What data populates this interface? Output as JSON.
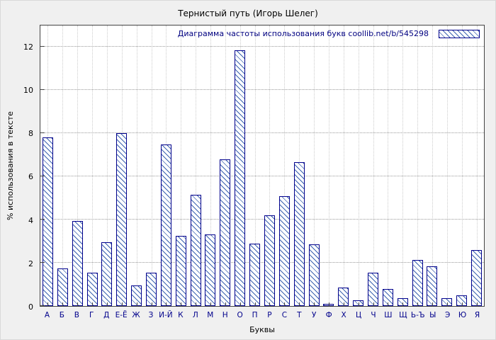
{
  "window": {
    "title": "Тернистый путь (Игорь Шелег)"
  },
  "chart_data": {
    "type": "bar",
    "title": "Тернистый путь (Игорь Шелег)",
    "legend_label": "Диаграмма частоты использования букв  coollib.net/b/545298",
    "legend_position": "top-right-inside",
    "xlabel": "Буквы",
    "ylabel": "% использования в тексте",
    "ylim": [
      0,
      13
    ],
    "yticks": [
      0,
      2,
      4,
      6,
      8,
      10,
      12
    ],
    "grid": true,
    "categories": [
      "А",
      "Б",
      "В",
      "Г",
      "Д",
      "Е-Ё",
      "Ж",
      "З",
      "И-Й",
      "К",
      "Л",
      "М",
      "Н",
      "О",
      "П",
      "Р",
      "С",
      "Т",
      "У",
      "Ф",
      "Х",
      "Ц",
      "Ч",
      "Ш",
      "Щ",
      "Ь-Ъ",
      "Ы",
      "Э",
      "Ю",
      "Я"
    ],
    "values": [
      7.8,
      1.75,
      3.95,
      1.55,
      2.95,
      8.0,
      0.95,
      1.55,
      7.5,
      3.25,
      5.15,
      3.3,
      6.8,
      11.85,
      2.9,
      4.2,
      5.1,
      6.65,
      2.85,
      0.1,
      0.85,
      0.25,
      1.55,
      0.8,
      0.35,
      2.15,
      1.85,
      0.35,
      0.5,
      2.6
    ],
    "colors": {
      "bar_outline": "#00008b",
      "bar_hatch": "#3a62b0",
      "figure_background": "#f0f0f0",
      "plot_background": "#ffffff",
      "grid": "#9a9a9a"
    }
  }
}
